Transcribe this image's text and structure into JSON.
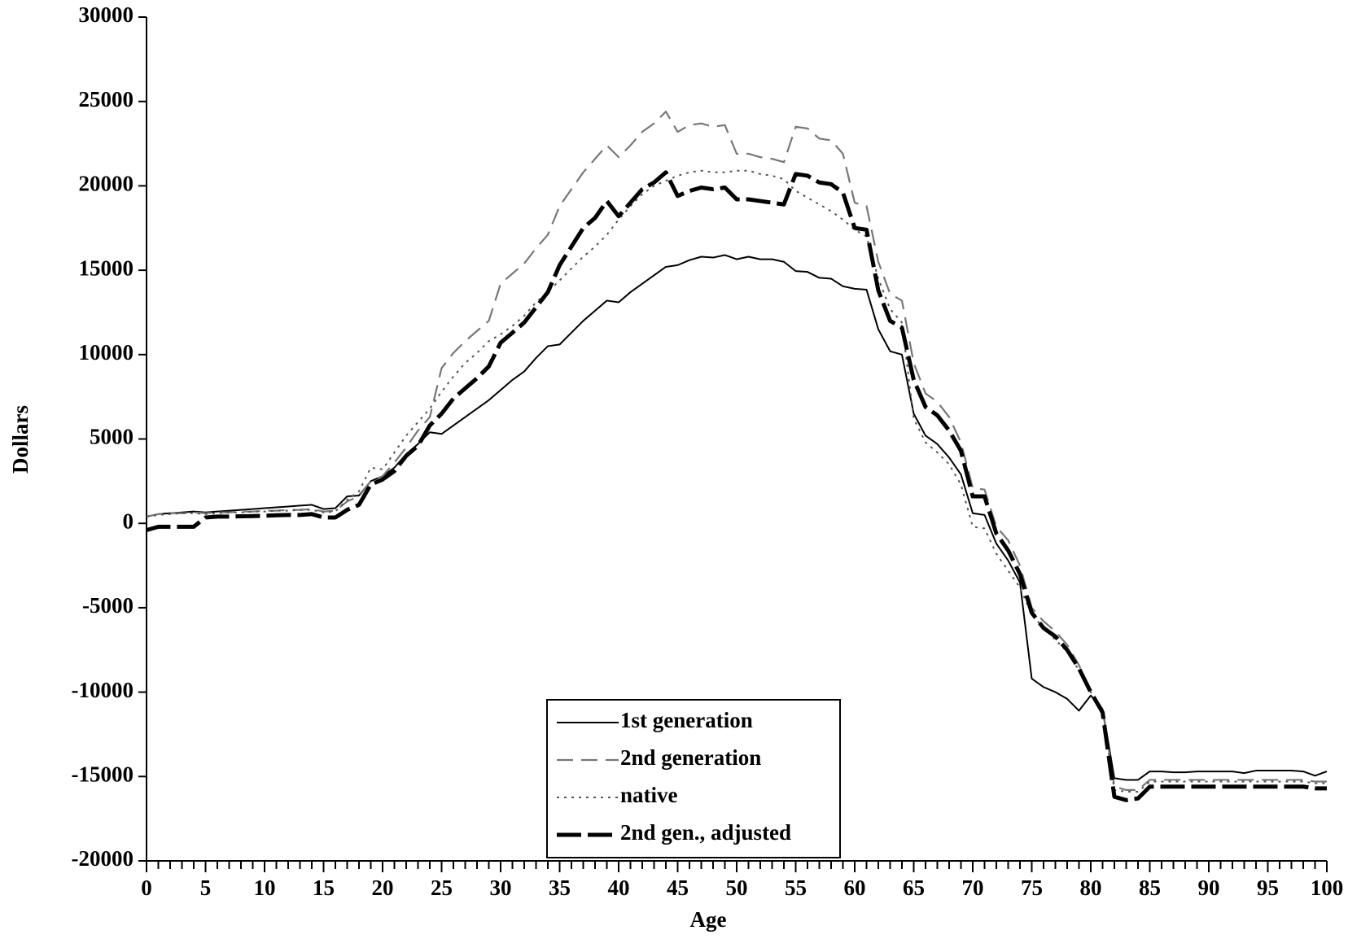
{
  "chart_data": {
    "type": "line",
    "x_label": "Age",
    "y_label": "Dollars",
    "x": [
      0,
      1,
      2,
      3,
      4,
      5,
      6,
      7,
      8,
      9,
      10,
      11,
      12,
      13,
      14,
      15,
      16,
      17,
      18,
      19,
      20,
      21,
      22,
      23,
      24,
      25,
      26,
      27,
      28,
      29,
      30,
      31,
      32,
      33,
      34,
      35,
      36,
      37,
      38,
      39,
      40,
      41,
      42,
      43,
      44,
      45,
      46,
      47,
      48,
      49,
      50,
      51,
      52,
      53,
      54,
      55,
      56,
      57,
      58,
      59,
      60,
      61,
      62,
      63,
      64,
      65,
      66,
      67,
      68,
      69,
      70,
      71,
      72,
      73,
      74,
      75,
      76,
      77,
      78,
      79,
      80,
      81,
      82,
      83,
      84,
      85,
      86,
      87,
      88,
      89,
      90,
      91,
      92,
      93,
      94,
      95,
      96,
      97,
      98,
      99,
      100
    ],
    "xlim": [
      0,
      100
    ],
    "xticks": [
      0,
      5,
      10,
      15,
      20,
      25,
      30,
      35,
      40,
      45,
      50,
      55,
      60,
      65,
      70,
      75,
      80,
      85,
      90,
      95,
      100
    ],
    "ylim": [
      -20000,
      30000
    ],
    "yticks": [
      -20000,
      -15000,
      -10000,
      -5000,
      0,
      5000,
      10000,
      15000,
      20000,
      25000,
      30000
    ],
    "grid": false,
    "legend": "bottom-center",
    "series": [
      {
        "name": "1st generation",
        "color": "#000000",
        "style": "solid",
        "values": [
          400,
          550,
          600,
          650,
          700,
          650,
          700,
          750,
          800,
          850,
          900,
          950,
          1000,
          1050,
          1100,
          850,
          900,
          1600,
          1650,
          2500,
          2800,
          3300,
          4100,
          4700,
          5400,
          5300,
          5800,
          6300,
          6800,
          7300,
          7900,
          8500,
          9000,
          9800,
          10500,
          10600,
          11300,
          12000,
          12600,
          13200,
          13100,
          13700,
          14200,
          14700,
          15200,
          15300,
          15600,
          15800,
          15750,
          15900,
          15650,
          15800,
          15650,
          15650,
          15500,
          14950,
          14900,
          14550,
          14500,
          14050,
          13900,
          13850,
          11500,
          10200,
          10000,
          6500,
          5200,
          4700,
          3900,
          2900,
          600,
          500,
          -1200,
          -2200,
          -3500,
          -9200,
          -9700,
          -10000,
          -10400,
          -11100,
          -10200,
          -11000,
          -15100,
          -15200,
          -15200,
          -14700,
          -14700,
          -14750,
          -14750,
          -14700,
          -14700,
          -14700,
          -14700,
          -14800,
          -14650,
          -14650,
          -14650,
          -14650,
          -14700,
          -14950,
          -14700
        ]
      },
      {
        "name": "2nd generation",
        "color": "#777777",
        "style": "dashed",
        "values": [
          400,
          550,
          600,
          600,
          650,
          600,
          650,
          650,
          700,
          700,
          750,
          750,
          800,
          800,
          850,
          700,
          750,
          1300,
          1600,
          2500,
          2800,
          3600,
          4500,
          5500,
          6300,
          9200,
          10100,
          10800,
          11400,
          12000,
          14200,
          14800,
          15400,
          16300,
          17100,
          18800,
          19800,
          20800,
          21600,
          22400,
          21700,
          22400,
          23200,
          23700,
          24400,
          23200,
          23600,
          23700,
          23500,
          23600,
          21900,
          21900,
          21700,
          21600,
          21400,
          23500,
          23400,
          22800,
          22700,
          21900,
          19000,
          18800,
          15500,
          13600,
          13200,
          9500,
          7700,
          7200,
          6300,
          4800,
          2100,
          2000,
          -200,
          -1000,
          -2500,
          -5000,
          -5800,
          -6400,
          -7200,
          -8400,
          -10000,
          -11000,
          -15600,
          -15800,
          -15800,
          -15200,
          -15200,
          -15200,
          -15200,
          -15200,
          -15200,
          -15200,
          -15200,
          -15200,
          -15200,
          -15200,
          -15200,
          -15200,
          -15200,
          -15300,
          -15300
        ]
      },
      {
        "name": "native",
        "color": "#555555",
        "style": "dotted",
        "values": [
          400,
          500,
          550,
          600,
          600,
          550,
          600,
          650,
          650,
          700,
          700,
          750,
          750,
          800,
          800,
          650,
          700,
          1400,
          1900,
          3300,
          3200,
          4200,
          5200,
          6000,
          6800,
          7800,
          8700,
          9500,
          10100,
          10800,
          11200,
          11700,
          12300,
          13100,
          13700,
          14400,
          15100,
          15800,
          16400,
          17100,
          18000,
          18800,
          19500,
          20000,
          20300,
          20600,
          20800,
          20900,
          20800,
          20800,
          20900,
          20900,
          20700,
          20600,
          20400,
          19700,
          19300,
          18900,
          18500,
          18000,
          17400,
          17000,
          14500,
          12700,
          11900,
          6200,
          4800,
          4200,
          3500,
          2300,
          -200,
          -300,
          -1800,
          -2800,
          -3800,
          -5400,
          -6200,
          -6900,
          -7600,
          -8700,
          -10000,
          -11200,
          -15800,
          -15900,
          -15900,
          -15300,
          -15300,
          -15300,
          -15300,
          -15300,
          -15300,
          -15300,
          -15300,
          -15300,
          -15300,
          -15300,
          -15300,
          -15300,
          -15300,
          -15400,
          -15400
        ]
      },
      {
        "name": "2nd gen., adjusted",
        "color": "#000000",
        "style": "thick-dashed",
        "values": [
          -400,
          -200,
          -200,
          -200,
          -200,
          350,
          400,
          400,
          420,
          430,
          450,
          480,
          500,
          500,
          550,
          350,
          350,
          800,
          1100,
          2300,
          2600,
          3100,
          4000,
          4600,
          5800,
          6500,
          7400,
          8000,
          8600,
          9300,
          10700,
          11300,
          11900,
          12800,
          13700,
          15300,
          16400,
          17500,
          18100,
          19100,
          18200,
          19000,
          19800,
          20200,
          20800,
          19400,
          19700,
          19900,
          19800,
          19900,
          19200,
          19200,
          19100,
          19000,
          18900,
          20700,
          20600,
          20200,
          20100,
          19600,
          17500,
          17400,
          13800,
          12000,
          11600,
          8500,
          6900,
          6400,
          5500,
          4300,
          1600,
          1600,
          -600,
          -1600,
          -3000,
          -5300,
          -6200,
          -6700,
          -7500,
          -8600,
          -10000,
          -11200,
          -16200,
          -16400,
          -16300,
          -15600,
          -15600,
          -15600,
          -15600,
          -15600,
          -15600,
          -15600,
          -15600,
          -15600,
          -15600,
          -15600,
          -15600,
          -15600,
          -15600,
          -15700,
          -15700
        ]
      }
    ]
  }
}
